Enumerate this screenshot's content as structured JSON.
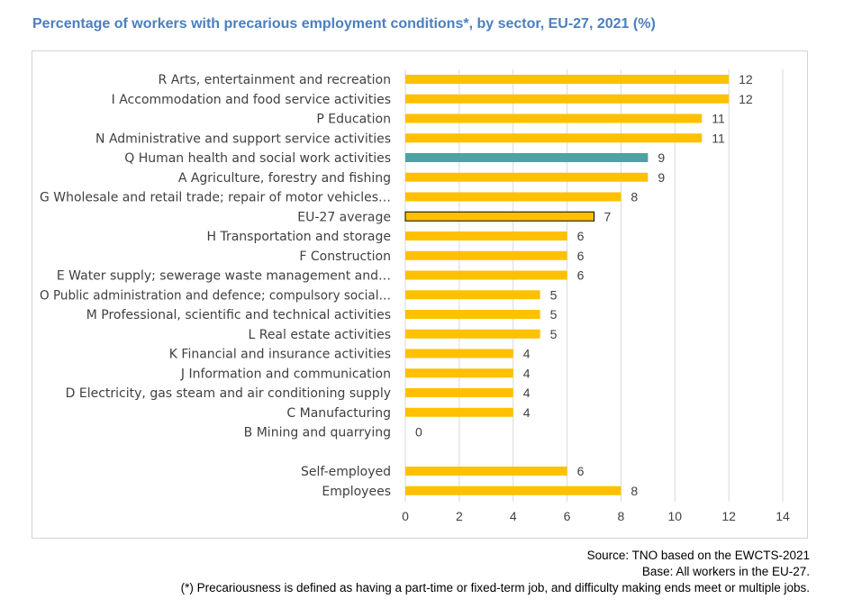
{
  "chart_data": {
    "type": "bar",
    "orientation": "horizontal",
    "title": "Percentage of workers with precarious employment conditions*, by sector, EU-27, 2021 (%)",
    "xlim": [
      0,
      14
    ],
    "xticks": [
      0,
      2,
      4,
      6,
      8,
      10,
      12,
      14
    ],
    "grid": "vertical",
    "categories": [
      {
        "label": "R Arts, entertainment and recreation",
        "value": 12,
        "style": "normal"
      },
      {
        "label": "I Accommodation and food service activities",
        "value": 12,
        "style": "normal"
      },
      {
        "label": "P Education",
        "value": 11,
        "style": "normal"
      },
      {
        "label": "N Administrative and support service activities",
        "value": 11,
        "style": "normal"
      },
      {
        "label": "Q Human health and social work activities",
        "value": 9,
        "style": "highlight"
      },
      {
        "label": "A Agriculture, forestry and fishing",
        "value": 9,
        "style": "normal"
      },
      {
        "label": "G Wholesale and retail trade; repair of motor vehicles…",
        "value": 8,
        "style": "normal"
      },
      {
        "label": "EU-27 average",
        "value": 7,
        "style": "average"
      },
      {
        "label": "H Transportation and storage",
        "value": 6,
        "style": "normal"
      },
      {
        "label": "F Construction",
        "value": 6,
        "style": "normal"
      },
      {
        "label": "E Water supply; sewerage waste management and…",
        "value": 6,
        "style": "normal"
      },
      {
        "label": "O Public administration and defence; compulsory social…",
        "value": 5,
        "style": "normal"
      },
      {
        "label": "M Professional, scientific and technical activities",
        "value": 5,
        "style": "normal"
      },
      {
        "label": "L Real estate activities",
        "value": 5,
        "style": "normal"
      },
      {
        "label": "K Financial and insurance activities",
        "value": 4,
        "style": "normal"
      },
      {
        "label": "J Information and communication",
        "value": 4,
        "style": "normal"
      },
      {
        "label": "D Electricity, gas steam and air conditioning supply",
        "value": 4,
        "style": "normal"
      },
      {
        "label": "C Manufacturing",
        "value": 4,
        "style": "normal"
      },
      {
        "label": "B Mining and quarrying",
        "value": 0,
        "style": "normal"
      },
      {
        "label": "",
        "value": null,
        "style": "gap"
      },
      {
        "label": "Self-employed",
        "value": 6,
        "style": "normal"
      },
      {
        "label": "Employees",
        "value": 8,
        "style": "normal"
      }
    ],
    "colors": {
      "normal": "#ffc000",
      "highlight": "#4ba3a3",
      "average": "#ffc000",
      "average_border": "#000000",
      "grid": "#d9d9d9",
      "title": "#4a7fbf",
      "text": "#404040"
    }
  },
  "footnotes": {
    "source": "Source: TNO based on the EWCTS-2021",
    "base": "Base: All workers in the EU-27.",
    "definition": "(*) Precariousness is defined as having a part-time or fixed-term job, and difficulty making ends meet or multiple jobs."
  }
}
